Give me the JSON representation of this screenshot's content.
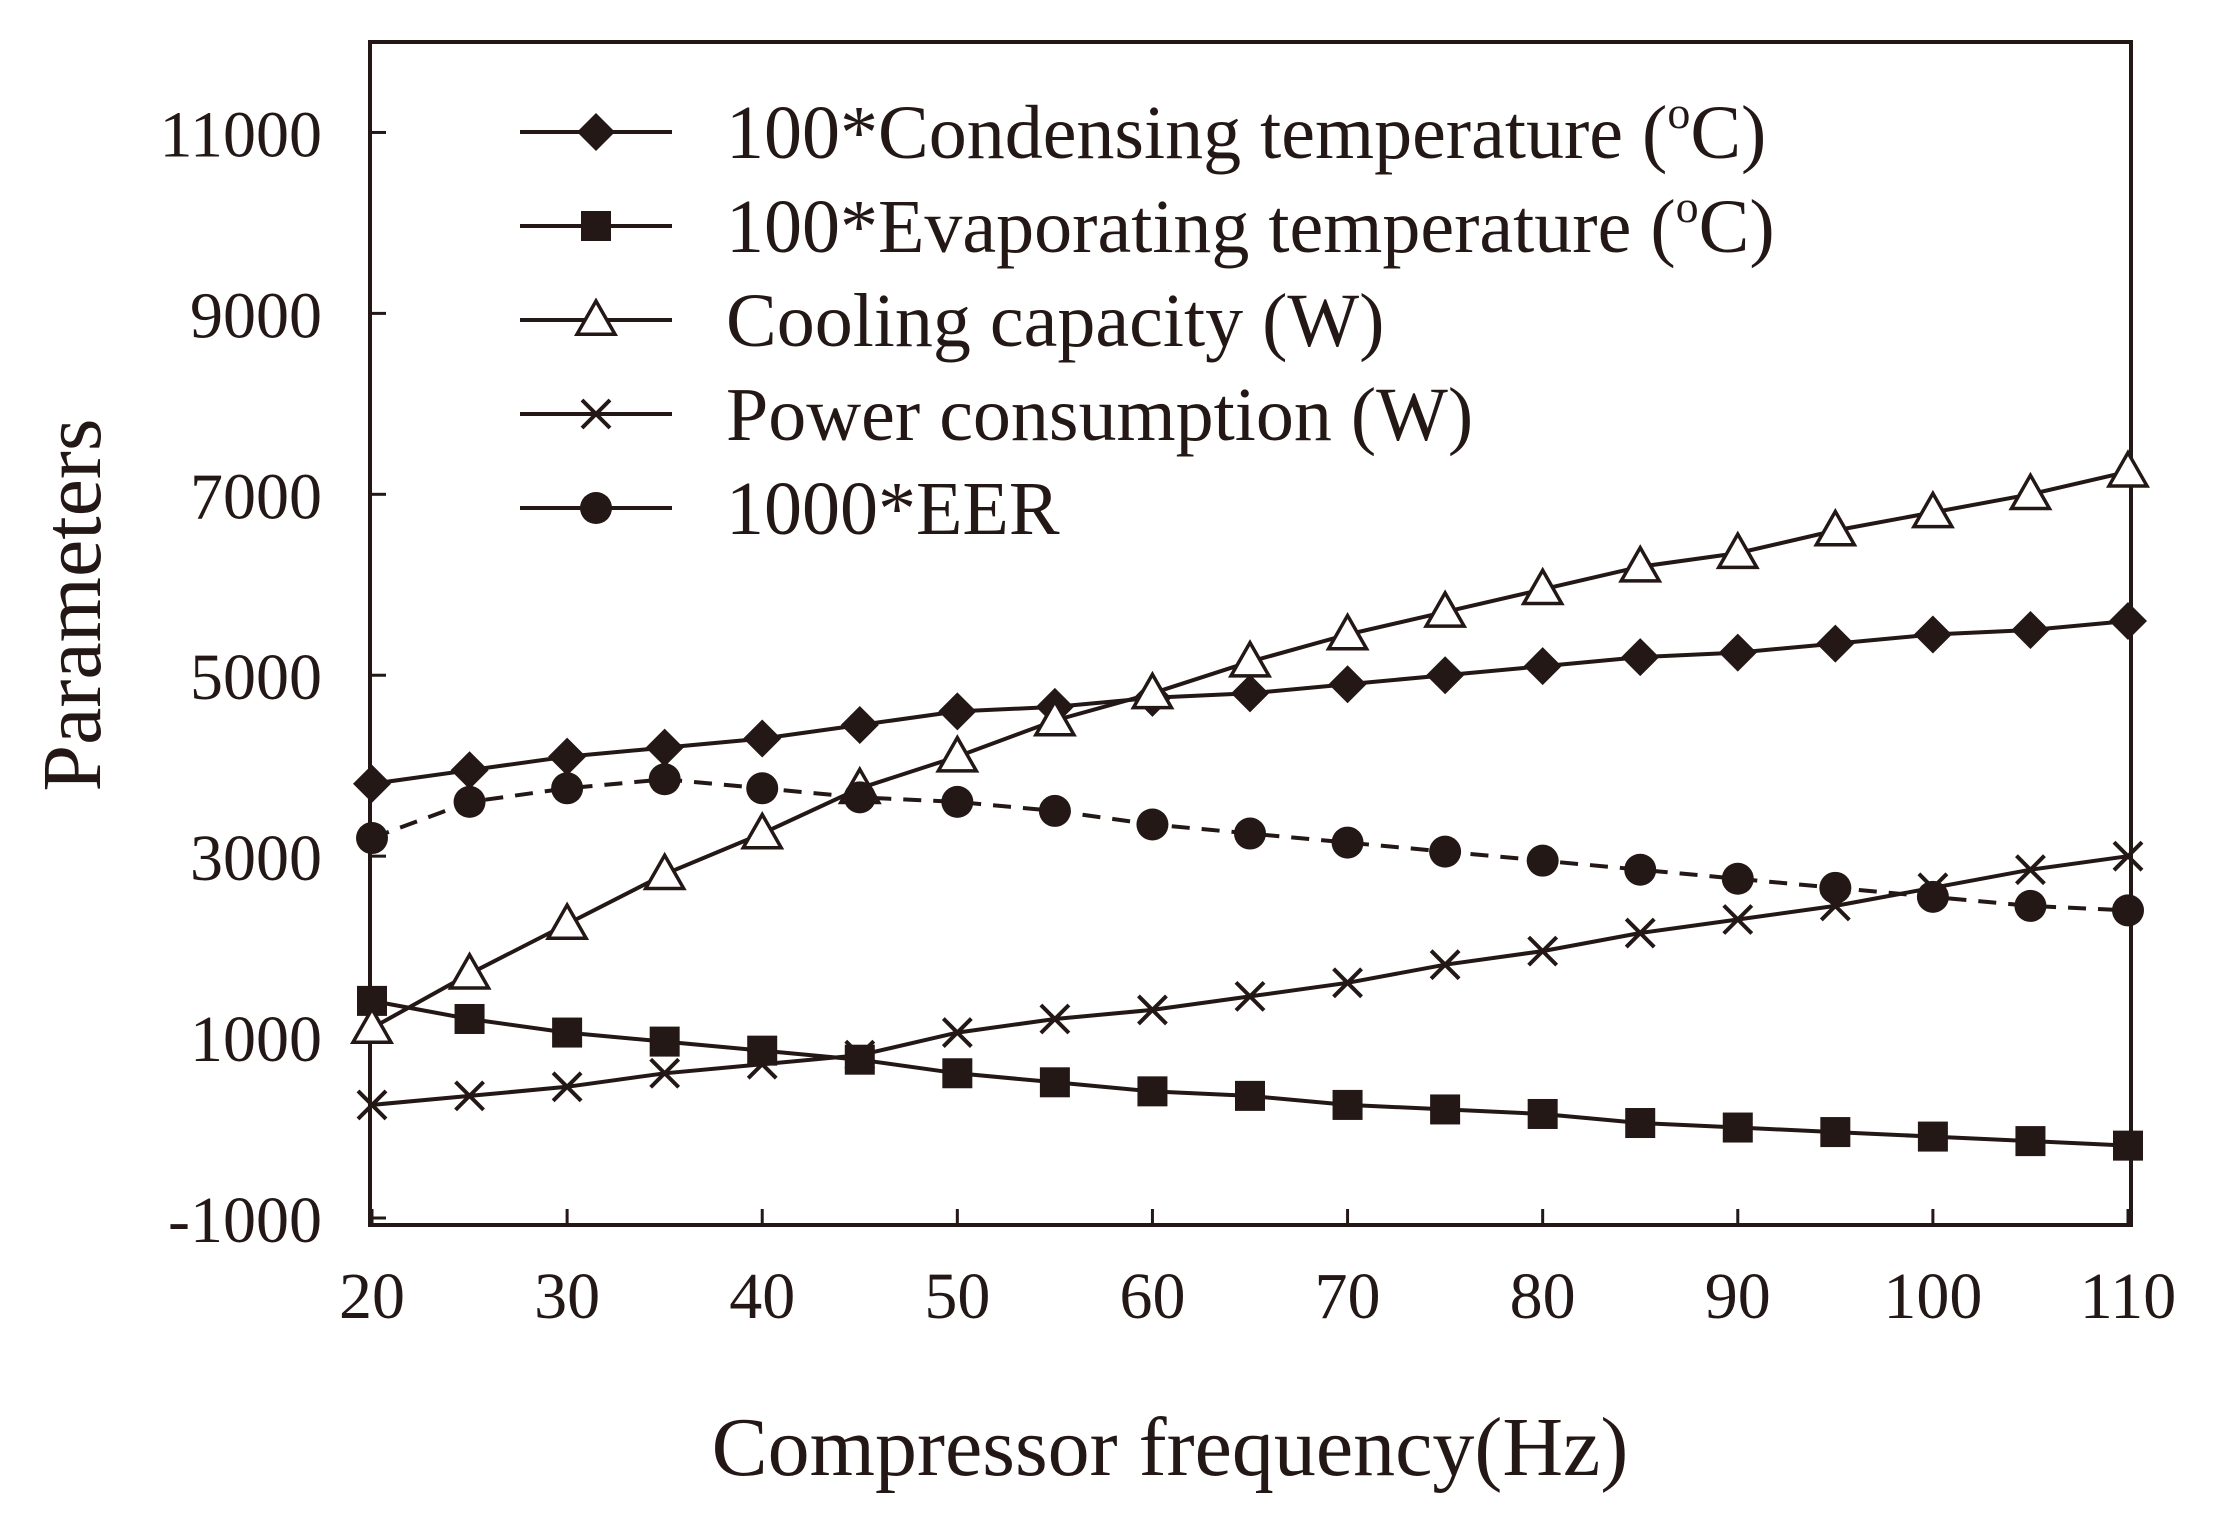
{
  "chart_data": {
    "type": "line",
    "title": "",
    "xlabel": "Compressor frequency(Hz)",
    "ylabel": "Parameters",
    "xlim": [
      20,
      110
    ],
    "ylim": [
      -1000,
      12000
    ],
    "x_ticks": [
      "20",
      "30",
      "40",
      "50",
      "60",
      "70",
      "80",
      "90",
      "100",
      "110"
    ],
    "x_tick_values": [
      20,
      30,
      40,
      50,
      60,
      70,
      80,
      90,
      100,
      110
    ],
    "y_ticks": [
      "-1000",
      "1000",
      "3000",
      "5000",
      "7000",
      "9000",
      "11000"
    ],
    "y_tick_values": [
      -1000,
      1000,
      3000,
      5000,
      7000,
      9000,
      11000
    ],
    "grid": false,
    "legend_position": "top-left",
    "x": [
      20,
      25,
      30,
      35,
      40,
      45,
      50,
      55,
      60,
      65,
      70,
      75,
      80,
      85,
      90,
      95,
      100,
      105,
      110
    ],
    "series": [
      {
        "name": "100*Condensing temperature",
        "unit_open": " (",
        "unit_sup": "o",
        "unit_close": "C)",
        "marker": "diamond",
        "dashed": false,
        "values": [
          3800,
          3950,
          4100,
          4200,
          4300,
          4450,
          4600,
          4650,
          4750,
          4800,
          4900,
          5000,
          5100,
          5200,
          5250,
          5350,
          5450,
          5500,
          5600
        ]
      },
      {
        "name": "100*Evaporating temperature",
        "unit_open": " (",
        "unit_sup": "o",
        "unit_close": "C)",
        "marker": "square",
        "dashed": false,
        "values": [
          1400,
          1200,
          1050,
          950,
          850,
          750,
          600,
          500,
          400,
          350,
          250,
          200,
          150,
          50,
          0,
          -50,
          -100,
          -150,
          -200
        ]
      },
      {
        "name": "Cooling capacity (W)",
        "marker": "triangle-open",
        "dashed": false,
        "values": [
          1100,
          1700,
          2250,
          2800,
          3250,
          3750,
          4100,
          4500,
          4800,
          5150,
          5450,
          5700,
          5950,
          6200,
          6350,
          6600,
          6800,
          7000,
          7250
        ]
      },
      {
        "name": "Power consumption (W)",
        "marker": "x",
        "dashed": false,
        "values": [
          250,
          350,
          450,
          600,
          700,
          800,
          1050,
          1200,
          1300,
          1450,
          1600,
          1800,
          1950,
          2150,
          2300,
          2450,
          2650,
          2850,
          3000
        ]
      },
      {
        "name": "1000*EER",
        "marker": "circle",
        "dashed": true,
        "values": [
          3200,
          3600,
          3750,
          3850,
          3750,
          3650,
          3600,
          3500,
          3350,
          3250,
          3150,
          3050,
          2950,
          2850,
          2750,
          2650,
          2550,
          2450,
          2400
        ]
      }
    ]
  }
}
